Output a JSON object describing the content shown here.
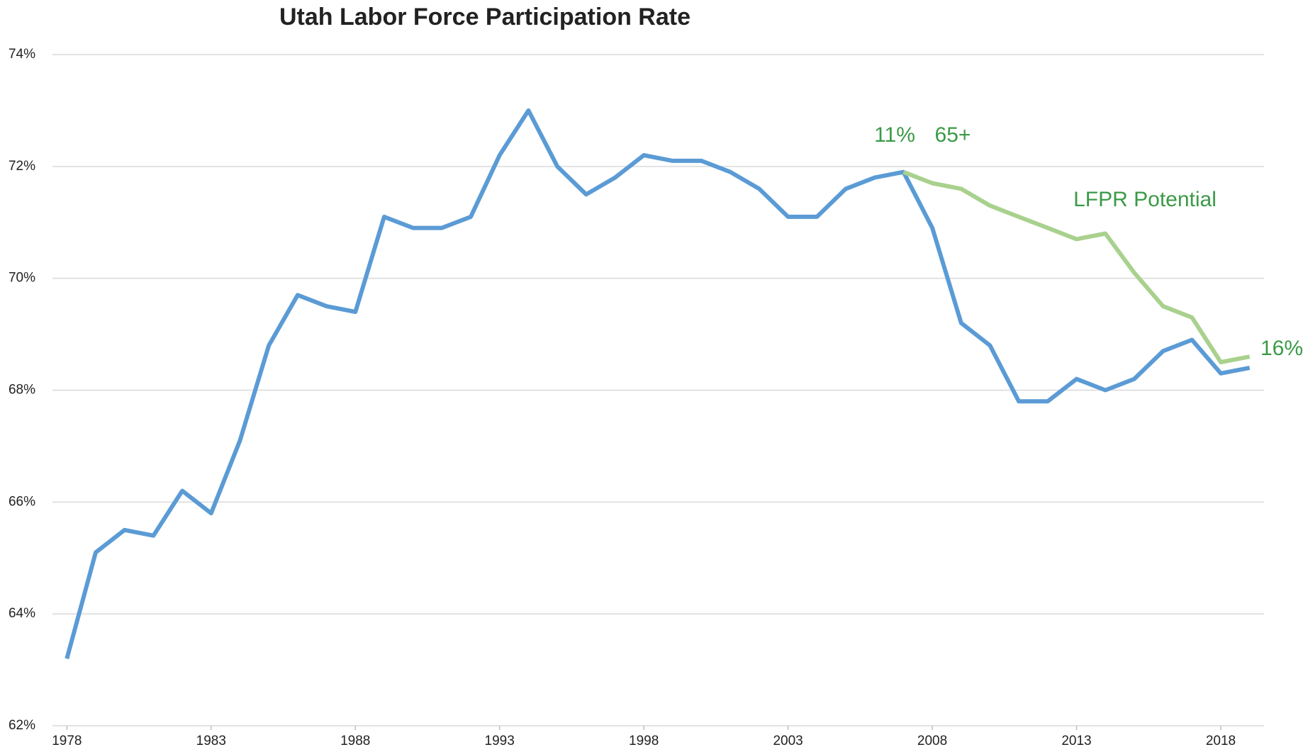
{
  "chart_data": {
    "type": "line",
    "title": "Utah Labor Force Participation Rate",
    "x": [
      1978,
      1979,
      1980,
      1981,
      1982,
      1983,
      1984,
      1985,
      1986,
      1987,
      1988,
      1989,
      1990,
      1991,
      1992,
      1993,
      1994,
      1995,
      1996,
      1997,
      1998,
      1999,
      2000,
      2001,
      2002,
      2003,
      2004,
      2005,
      2006,
      2007,
      2008,
      2009,
      2010,
      2011,
      2012,
      2013,
      2014,
      2015,
      2016,
      2017,
      2018,
      2019
    ],
    "series": [
      {
        "color": "#5b9bd5",
        "values": [
          63.2,
          65.1,
          65.5,
          65.4,
          66.2,
          65.8,
          67.1,
          68.8,
          69.7,
          69.5,
          69.4,
          71.1,
          70.9,
          70.9,
          71.1,
          72.2,
          73.0,
          72.0,
          71.5,
          71.8,
          72.2,
          72.1,
          72.1,
          71.9,
          71.6,
          71.1,
          71.1,
          71.6,
          71.8,
          71.9,
          70.9,
          69.2,
          68.8,
          67.8,
          67.8,
          68.2,
          68.0,
          68.2,
          68.7,
          68.9,
          68.3,
          68.4
        ]
      },
      {
        "color": "#a9d18e",
        "values": [
          null,
          null,
          null,
          null,
          null,
          null,
          null,
          null,
          null,
          null,
          null,
          null,
          null,
          null,
          null,
          null,
          null,
          null,
          null,
          null,
          null,
          null,
          null,
          null,
          null,
          null,
          null,
          null,
          null,
          71.9,
          71.7,
          71.6,
          71.3,
          71.1,
          70.9,
          70.7,
          70.8,
          70.1,
          69.5,
          69.3,
          68.5,
          68.6
        ]
      }
    ],
    "xlim": [
      1977.5,
      2019.5
    ],
    "xticks": [
      1978,
      1983,
      1988,
      1993,
      1998,
      2003,
      2008,
      2013,
      2018
    ],
    "ylim": [
      62,
      74
    ],
    "yticks": [
      {
        "value": 62,
        "label": "62%"
      },
      {
        "value": 64,
        "label": "64%"
      },
      {
        "value": 66,
        "label": "66%"
      },
      {
        "value": 68,
        "label": "68%"
      },
      {
        "value": 70,
        "label": "70%"
      },
      {
        "value": 72,
        "label": "72%"
      },
      {
        "value": 74,
        "label": "74%"
      }
    ],
    "grid": true,
    "annotations": [
      "11%",
      "65+",
      "LFPR Potential",
      "16%"
    ]
  }
}
